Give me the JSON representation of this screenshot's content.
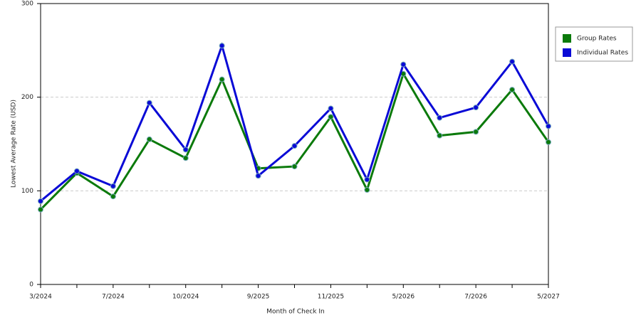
{
  "chart_data": {
    "type": "line",
    "x_label": "Month of Check In",
    "y_label": "Lowest Average Rate (USD)",
    "categories": [
      "3/2024",
      null,
      "7/2024",
      null,
      "10/2024",
      null,
      "9/2025",
      null,
      "11/2025",
      null,
      "5/2026",
      null,
      "7/2026",
      null,
      "5/2027"
    ],
    "series": [
      {
        "name": "Group Rates",
        "color": "#0b7a0b",
        "values": [
          80,
          119,
          94,
          155,
          135,
          219,
          124,
          126,
          179,
          101,
          225,
          159,
          163,
          208,
          152
        ]
      },
      {
        "name": "Individual Rates",
        "color": "#0a0ad6",
        "values": [
          89,
          121,
          105,
          194,
          144,
          255,
          116,
          148,
          188,
          112,
          235,
          178,
          189,
          238,
          169
        ]
      }
    ],
    "ylim": [
      0,
      300
    ],
    "yticks": [
      0,
      100,
      200,
      300
    ],
    "grid": true,
    "legend": "right"
  }
}
